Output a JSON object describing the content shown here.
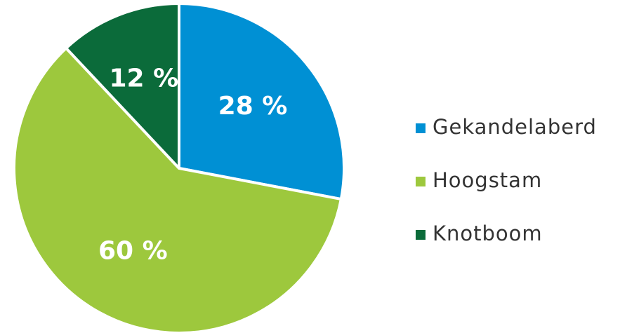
{
  "chart_data": {
    "type": "pie",
    "categories": [
      "Gekandelaberd",
      "Hoogstam",
      "Knotboom"
    ],
    "values": [
      28,
      60,
      12
    ],
    "value_labels": [
      "28 %",
      "60 %",
      "12 %"
    ],
    "colors": [
      "#0090d4",
      "#9dc83d",
      "#0b6b3a"
    ],
    "legend": "right"
  }
}
